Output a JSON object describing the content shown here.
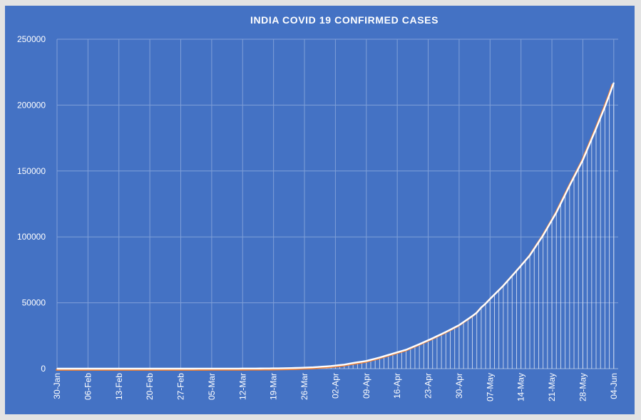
{
  "chart_data": {
    "type": "line",
    "title": "INDIA COVID 19 CONFIRMED CASES",
    "xlabel": "",
    "ylabel": "",
    "ylim": [
      0,
      250000
    ],
    "y_ticks": [
      0,
      50000,
      100000,
      150000,
      200000,
      250000
    ],
    "y_tick_labels": [
      "0",
      "50000",
      "100000",
      "150000",
      "200000",
      "250000"
    ],
    "x_range": [
      "2020-01-30",
      "2020-06-05"
    ],
    "x_tick_dates": [
      "2020-01-30",
      "2020-02-06",
      "2020-02-13",
      "2020-02-20",
      "2020-02-27",
      "2020-03-05",
      "2020-03-12",
      "2020-03-19",
      "2020-03-26",
      "2020-04-02",
      "2020-04-09",
      "2020-04-16",
      "2020-04-23",
      "2020-04-30",
      "2020-05-07",
      "2020-05-14",
      "2020-05-21",
      "2020-05-28",
      "2020-06-04"
    ],
    "x_tick_labels": [
      "30-Jan",
      "06-Feb",
      "13-Feb",
      "20-Feb",
      "27-Feb",
      "05-Mar",
      "12-Mar",
      "19-Mar",
      "26-Mar",
      "02-Apr",
      "09-Apr",
      "16-Apr",
      "23-Apr",
      "30-Apr",
      "07-May",
      "14-May",
      "21-May",
      "28-May",
      "04-Jun"
    ],
    "grid": true,
    "colors": {
      "background": "#4472c4",
      "line": "#ffffff",
      "line_shadow": "#ed7d31",
      "grid": "#7f9fd8",
      "drop_lines": "#ffffff"
    },
    "series": [
      {
        "points": [
          [
            "2020-01-30",
            1
          ],
          [
            "2020-02-15",
            3
          ],
          [
            "2020-03-01",
            3
          ],
          [
            "2020-03-10",
            50
          ],
          [
            "2020-03-15",
            110
          ],
          [
            "2020-03-20",
            250
          ],
          [
            "2020-03-24",
            536
          ],
          [
            "2020-03-28",
            1024
          ],
          [
            "2020-04-01",
            1998
          ],
          [
            "2020-04-04",
            3082
          ],
          [
            "2020-04-06",
            4281
          ],
          [
            "2020-04-09",
            5865
          ],
          [
            "2020-04-12",
            8446
          ],
          [
            "2020-04-15",
            11439
          ],
          [
            "2020-04-18",
            14378
          ],
          [
            "2020-04-21",
            18601
          ],
          [
            "2020-04-24",
            23077
          ],
          [
            "2020-04-27",
            27892
          ],
          [
            "2020-04-30",
            33050
          ],
          [
            "2020-05-03",
            39980
          ],
          [
            "2020-05-04",
            42533
          ],
          [
            "2020-05-05",
            46433
          ],
          [
            "2020-05-06",
            49391
          ],
          [
            "2020-05-07",
            52952
          ],
          [
            "2020-05-10",
            62939
          ],
          [
            "2020-05-13",
            74281
          ],
          [
            "2020-05-16",
            85940
          ],
          [
            "2020-05-19",
            101139
          ],
          [
            "2020-05-22",
            118447
          ],
          [
            "2020-05-25",
            138845
          ],
          [
            "2020-05-28",
            158333
          ],
          [
            "2020-05-31",
            182143
          ],
          [
            "2020-06-02",
            198706
          ],
          [
            "2020-06-03",
            207615
          ],
          [
            "2020-06-04",
            216919
          ]
        ]
      }
    ]
  }
}
